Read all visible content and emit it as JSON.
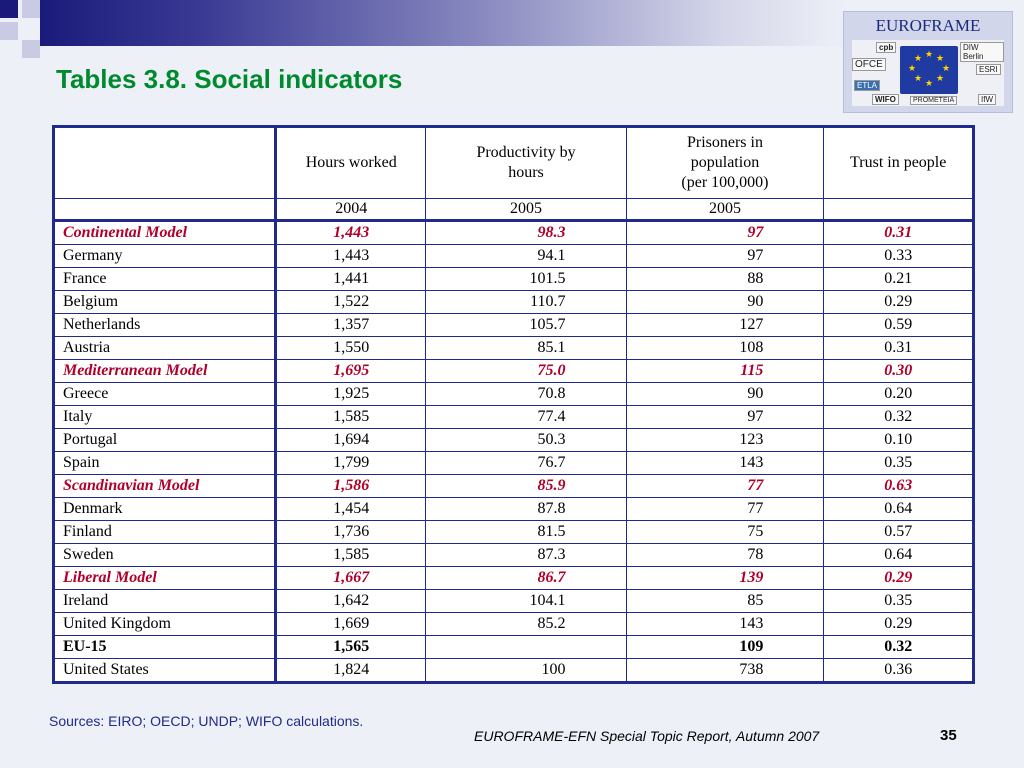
{
  "slide": {
    "title": "Tables 3.8. Social indicators",
    "sources": "Sources: EIRO; OECD; UNDP; WIFO calculations.",
    "footer": "EUROFRAME-EFN Special Topic Report, Autumn 2007",
    "page_number": "35"
  },
  "logo": {
    "title": "EUROFRAME",
    "labels": [
      "cpb",
      "DIW Berlin",
      "OFCE",
      "ETLA",
      "ESRI",
      "WIFO",
      "PROMETEIA",
      "IfW"
    ]
  },
  "colors": {
    "title": "#008a2e",
    "border": "#1f2a8a",
    "model_rows": "#b0002a",
    "background": "#eef0f8"
  },
  "table": {
    "headers": [
      "",
      "Hours worked",
      "Productivity by hours",
      "Prisoners in population (per 100,000)",
      "Trust in people"
    ],
    "header_lines": {
      "productivity": [
        "Productivity by",
        "hours"
      ],
      "prisoners": [
        "Prisoners in",
        "population",
        "(per 100,000)"
      ]
    },
    "years": [
      "",
      "2004",
      "2005",
      "2005",
      ""
    ],
    "rows": [
      {
        "name": "Continental Model",
        "hours": "1,443",
        "productivity": "98.3",
        "prisoners": "97",
        "trust": "0.31",
        "type": "model"
      },
      {
        "name": "Germany",
        "hours": "1,443",
        "productivity": "94.1",
        "prisoners": "97",
        "trust": "0.33",
        "type": "country"
      },
      {
        "name": "France",
        "hours": "1,441",
        "productivity": "101.5",
        "prisoners": "88",
        "trust": "0.21",
        "type": "country"
      },
      {
        "name": "Belgium",
        "hours": "1,522",
        "productivity": "110.7",
        "prisoners": "90",
        "trust": "0.29",
        "type": "country"
      },
      {
        "name": "Netherlands",
        "hours": "1,357",
        "productivity": "105.7",
        "prisoners": "127",
        "trust": "0.59",
        "type": "country"
      },
      {
        "name": "Austria",
        "hours": "1,550",
        "productivity": "85.1",
        "prisoners": "108",
        "trust": "0.31",
        "type": "country"
      },
      {
        "name": "Mediterranean Model",
        "hours": "1,695",
        "productivity": "75.0",
        "prisoners": "115",
        "trust": "0.30",
        "type": "model"
      },
      {
        "name": "Greece",
        "hours": "1,925",
        "productivity": "70.8",
        "prisoners": "90",
        "trust": "0.20",
        "type": "country"
      },
      {
        "name": "Italy",
        "hours": "1,585",
        "productivity": "77.4",
        "prisoners": "97",
        "trust": "0.32",
        "type": "country"
      },
      {
        "name": "Portugal",
        "hours": "1,694",
        "productivity": "50.3",
        "prisoners": "123",
        "trust": "0.10",
        "type": "country"
      },
      {
        "name": "Spain",
        "hours": "1,799",
        "productivity": "76.7",
        "prisoners": "143",
        "trust": "0.35",
        "type": "country"
      },
      {
        "name": "Scandinavian Model",
        "hours": "1,586",
        "productivity": "85.9",
        "prisoners": "77",
        "trust": "0.63",
        "type": "model"
      },
      {
        "name": "Denmark",
        "hours": "1,454",
        "productivity": "87.8",
        "prisoners": "77",
        "trust": "0.64",
        "type": "country"
      },
      {
        "name": "Finland",
        "hours": "1,736",
        "productivity": "81.5",
        "prisoners": "75",
        "trust": "0.57",
        "type": "country"
      },
      {
        "name": "Sweden",
        "hours": "1,585",
        "productivity": "87.3",
        "prisoners": "78",
        "trust": "0.64",
        "type": "country"
      },
      {
        "name": "Liberal Model",
        "hours": "1,667",
        "productivity": "86.7",
        "prisoners": "139",
        "trust": "0.29",
        "type": "model"
      },
      {
        "name": "Ireland",
        "hours": "1,642",
        "productivity": "104.1",
        "prisoners": "85",
        "trust": "0.35",
        "type": "country"
      },
      {
        "name": "United Kingdom",
        "hours": "1,669",
        "productivity": "85.2",
        "prisoners": "143",
        "trust": "0.29",
        "type": "country"
      },
      {
        "name": "EU-15",
        "hours": "1,565",
        "productivity": "",
        "prisoners": "109",
        "trust": "0.32",
        "type": "eu"
      },
      {
        "name": "United States",
        "hours": "1,824",
        "productivity": "100",
        "prisoners": "738",
        "trust": "0.36",
        "type": "country"
      }
    ]
  }
}
